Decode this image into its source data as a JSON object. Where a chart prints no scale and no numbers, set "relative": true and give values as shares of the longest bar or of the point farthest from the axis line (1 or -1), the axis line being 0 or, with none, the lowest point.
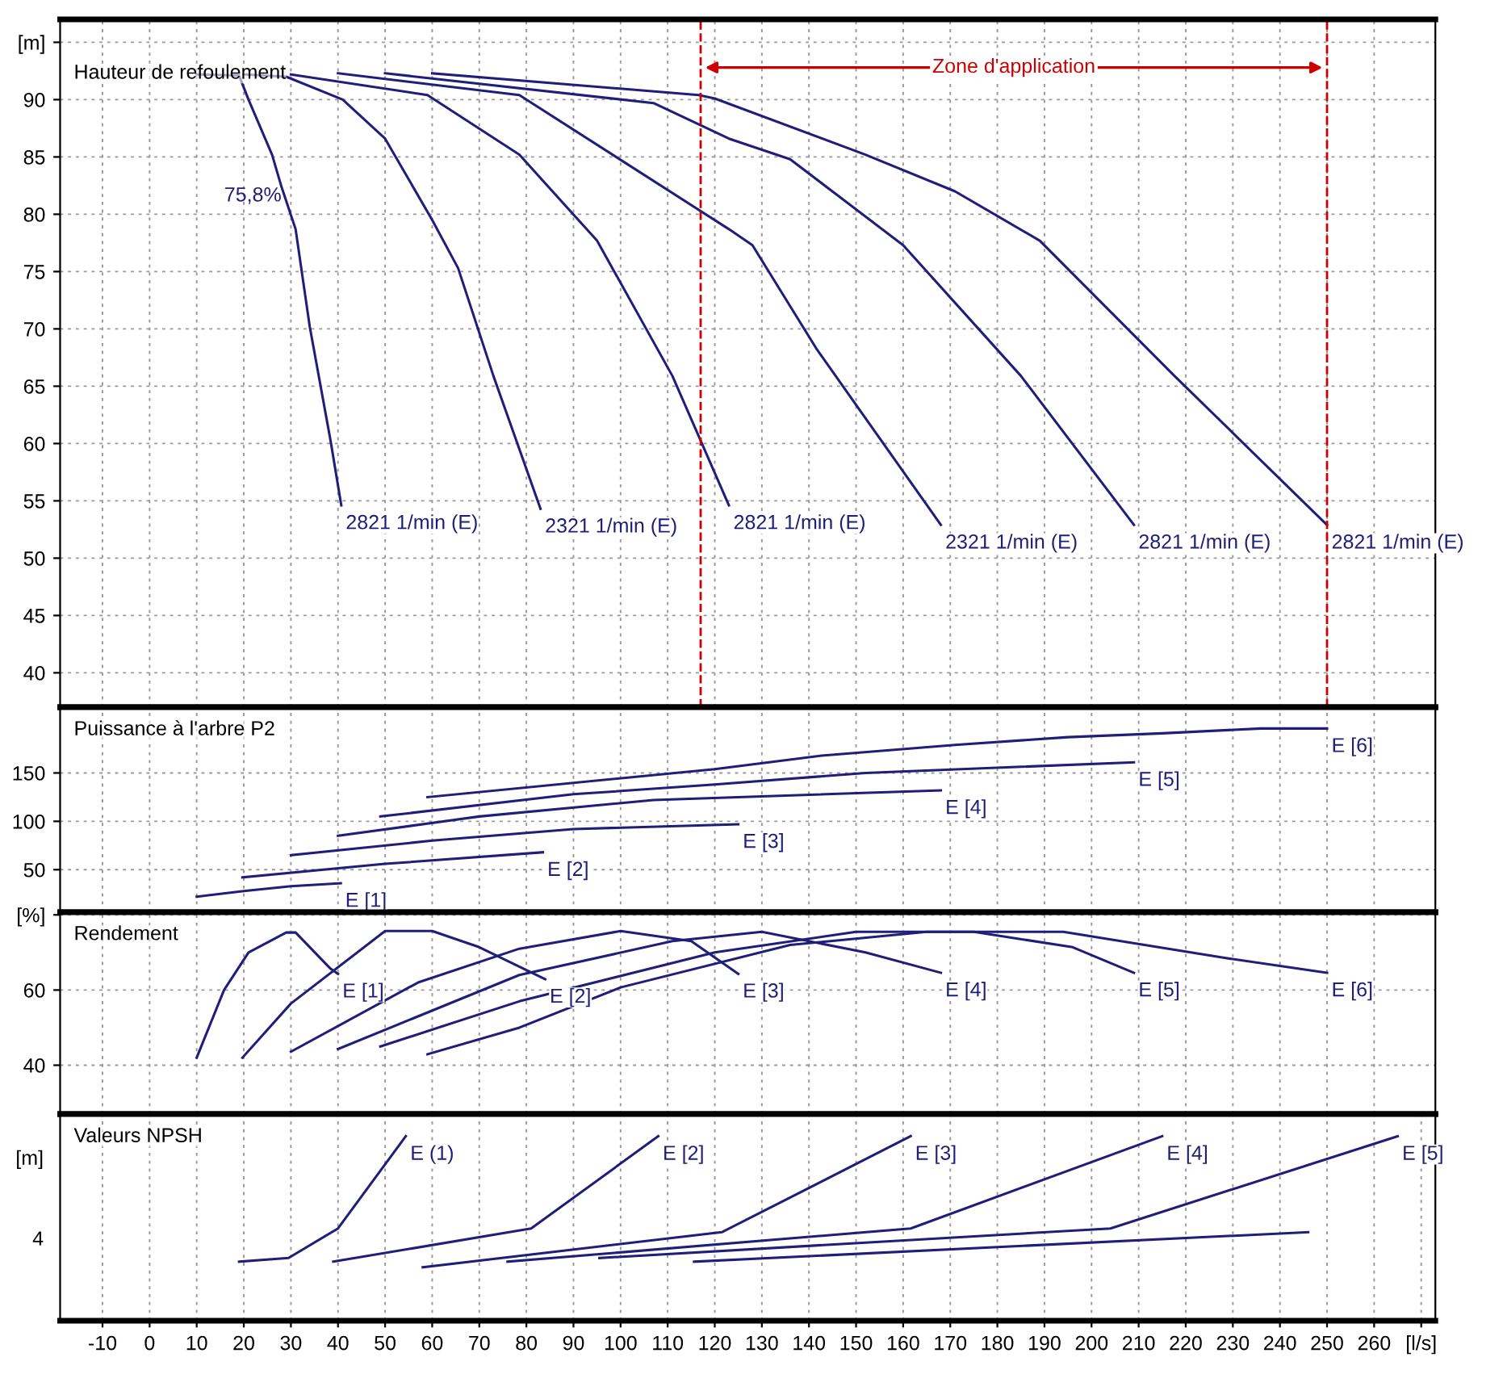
{
  "chart_data": [
    {
      "type": "line",
      "annotations": [
        "Hauteur de refoulement",
        {
          "text": "75,8%",
          "x": 28,
          "y": 82.4
        }
      ],
      "xlim": [
        -19,
        273
      ],
      "xticks": [
        -10,
        0,
        10,
        20,
        30,
        40,
        50,
        60,
        70,
        80,
        90,
        100,
        110,
        120,
        130,
        140,
        150,
        160,
        170,
        180,
        190,
        200,
        210,
        220,
        230,
        240,
        250,
        260
      ],
      "ylim": [
        37,
        97
      ],
      "yticks": [
        40,
        45,
        50,
        55,
        60,
        65,
        70,
        75,
        80,
        85,
        90,
        {
          "value": 95,
          "label": "[m]"
        }
      ],
      "tick_labels": "y",
      "grid": true,
      "line_style": "solid",
      "ref_lines": [
        {
          "axis": "x",
          "value": 117,
          "color": "#cc0000",
          "line_style": "dashed"
        },
        {
          "axis": "x",
          "value": 250,
          "label": "Zone d'application",
          "color": "#cc0000",
          "line_style": "dashed"
        }
      ],
      "series": [
        {
          "name": "2821 1/min (E)",
          "color": "#1f1f7a",
          "x": [
            10,
            19,
            21,
            26,
            28,
            31,
            34,
            38.4,
            40.7
          ],
          "values": [
            92.2,
            92.1,
            90,
            85.2,
            82.4,
            78.7,
            70.2,
            60.3,
            54.6
          ]
        },
        {
          "name": "2321 1/min (E)",
          "color": "#1f1f7a",
          "x": [
            20,
            29,
            41,
            50,
            60,
            65.5,
            73,
            83
          ],
          "values": [
            92.2,
            92,
            90,
            86.6,
            79.5,
            75.3,
            65.9,
            54.3
          ]
        },
        {
          "name": "2821 1/min (E)",
          "color": "#1f1f7a",
          "x": [
            30,
            59,
            78.5,
            95,
            111,
            123
          ],
          "values": [
            92.2,
            90.4,
            85.2,
            77.7,
            65.9,
            54.6
          ]
        },
        {
          "name": "2321 1/min (E)",
          "color": "#1f1f7a",
          "x": [
            40,
            78.5,
            123,
            128,
            141.7,
            168
          ],
          "values": [
            92.3,
            90.4,
            78.7,
            77.3,
            68.2,
            52.9
          ]
        },
        {
          "name": "2821 1/min (E)",
          "color": "#1f1f7a",
          "x": [
            50,
            107,
            123,
            136,
            160,
            185,
            209
          ],
          "values": [
            92.3,
            89.7,
            86.6,
            84.8,
            77.3,
            65.9,
            52.9
          ]
        },
        {
          "name": "2821 1/min (E)",
          "color": "#1f1f7a",
          "x": [
            60,
            116.6,
            120,
            152,
            171,
            189,
            217.6,
            250
          ],
          "values": [
            92.3,
            90.4,
            90.1,
            85.2,
            82,
            77.7,
            65.9,
            52.9
          ]
        }
      ]
    },
    {
      "type": "line",
      "annotations": [
        "Puissance à l'arbre P2"
      ],
      "xlim": [
        -19,
        273
      ],
      "xticks": [
        -10,
        0,
        10,
        20,
        30,
        40,
        50,
        60,
        70,
        80,
        90,
        100,
        110,
        120,
        130,
        140,
        150,
        160,
        170,
        180,
        190,
        200,
        210,
        220,
        230,
        240,
        250,
        260
      ],
      "ylim": [
        6,
        218
      ],
      "yticks": [
        50,
        100,
        150
      ],
      "tick_labels": "y",
      "grid": true,
      "line_style": "solid",
      "series": [
        {
          "name": "E [1]",
          "color": "#1f1f7a",
          "x": [
            10,
            20,
            30,
            40.6
          ],
          "values": [
            22,
            28,
            33,
            36
          ]
        },
        {
          "name": "E [2]",
          "color": "#1f1f7a",
          "x": [
            19.7,
            50,
            83.5
          ],
          "values": [
            42,
            56,
            68
          ]
        },
        {
          "name": "E [3]",
          "color": "#1f1f7a",
          "x": [
            30,
            60,
            90,
            125
          ],
          "values": [
            65,
            80,
            92,
            97
          ]
        },
        {
          "name": "E [4]",
          "color": "#1f1f7a",
          "x": [
            40,
            70,
            107,
            168
          ],
          "values": [
            85,
            105,
            122,
            132
          ]
        },
        {
          "name": "E [5]",
          "color": "#1f1f7a",
          "x": [
            49,
            90,
            120,
            152,
            209
          ],
          "values": [
            105,
            128,
            138,
            150,
            161
          ]
        },
        {
          "name": "E [6]",
          "color": "#1f1f7a",
          "x": [
            59,
            120,
            142.7,
            171,
            195,
            215,
            236,
            250
          ],
          "values": [
            125,
            154,
            168,
            179,
            187,
            191,
            196,
            196
          ]
        }
      ]
    },
    {
      "type": "line",
      "annotations": [
        "Rendement"
      ],
      "xlim": [
        -19,
        273
      ],
      "xticks": [
        -10,
        0,
        10,
        20,
        30,
        40,
        50,
        60,
        70,
        80,
        90,
        100,
        110,
        120,
        130,
        140,
        150,
        160,
        170,
        180,
        190,
        200,
        210,
        220,
        230,
        240,
        250,
        260
      ],
      "ylim": [
        27,
        80.7
      ],
      "yticks": [
        40,
        60,
        {
          "value": 80,
          "label": "[%]"
        }
      ],
      "tick_labels": "y",
      "grid": true,
      "line_style": "solid",
      "series": [
        {
          "name": "E [1]",
          "color": "#1f1f7a",
          "x": [
            10,
            15.8,
            21,
            29,
            31,
            38.4,
            40
          ],
          "values": [
            42,
            60,
            70,
            75.3,
            75.3,
            65.7,
            64.3
          ]
        },
        {
          "name": "E [2]",
          "color": "#1f1f7a",
          "x": [
            19.7,
            30,
            50,
            60,
            70,
            84
          ],
          "values": [
            42,
            56.4,
            75.7,
            75.7,
            71.4,
            62.9
          ]
        },
        {
          "name": "E [3]",
          "color": "#1f1f7a",
          "x": [
            30,
            57,
            78.5,
            100,
            115,
            125
          ],
          "values": [
            43.6,
            62,
            71,
            75.7,
            73,
            64.3
          ]
        },
        {
          "name": "E [4]",
          "color": "#1f1f7a",
          "x": [
            40,
            78.5,
            111,
            130,
            152,
            168
          ],
          "values": [
            44.3,
            64,
            73,
            75.5,
            70,
            64.6
          ]
        },
        {
          "name": "E [5]",
          "color": "#1f1f7a",
          "x": [
            49,
            78.5,
            120,
            150,
            175,
            196,
            209
          ],
          "values": [
            45,
            57,
            70,
            75.5,
            75.5,
            71.4,
            64.6
          ]
        },
        {
          "name": "E [6]",
          "color": "#1f1f7a",
          "x": [
            59,
            78.5,
            100,
            136,
            165,
            194,
            228,
            250
          ],
          "values": [
            42.9,
            50,
            60.7,
            72,
            75.5,
            75.5,
            68.6,
            64.6
          ]
        }
      ]
    },
    {
      "type": "line",
      "annotations": [
        "Valeurs NPSH",
        "4"
      ],
      "ylabel": "[m]",
      "relative": true,
      "xlim": [
        -19,
        273
      ],
      "xticks": [
        -10,
        0,
        10,
        20,
        30,
        40,
        50,
        60,
        70,
        80,
        90,
        100,
        110,
        120,
        130,
        140,
        150,
        160,
        170,
        180,
        190,
        200,
        210,
        220,
        230,
        240,
        250,
        260,
        {
          "value": 270,
          "label": "[l/s]"
        }
      ],
      "grid": "x",
      "line_style": "solid",
      "series": [
        {
          "name": "E (1)",
          "color": "#1f1f7a",
          "x": [
            19,
            29.5,
            40,
            54.4
          ],
          "values": [
            0.32,
            0.34,
            0.5,
            1
          ]
        },
        {
          "name": "E [2]",
          "color": "#1f1f7a",
          "x": [
            39,
            81,
            108
          ],
          "values": [
            0.32,
            0.5,
            1
          ]
        },
        {
          "name": "E [3]",
          "color": "#1f1f7a",
          "x": [
            58,
            121.5,
            161.6
          ],
          "values": [
            0.29,
            0.48,
            1
          ]
        },
        {
          "name": "E [4]",
          "color": "#1f1f7a",
          "x": [
            76,
            161.6,
            215
          ],
          "values": [
            0.32,
            0.5,
            1
          ]
        },
        {
          "name": "E [5]",
          "color": "#1f1f7a",
          "x": [
            95.5,
            204,
            265
          ],
          "values": [
            0.34,
            0.5,
            1
          ]
        },
        {
          "color": "#1f1f7a",
          "x": [
            115.6,
            246
          ],
          "values": [
            0.32,
            0.48
          ]
        }
      ]
    }
  ]
}
